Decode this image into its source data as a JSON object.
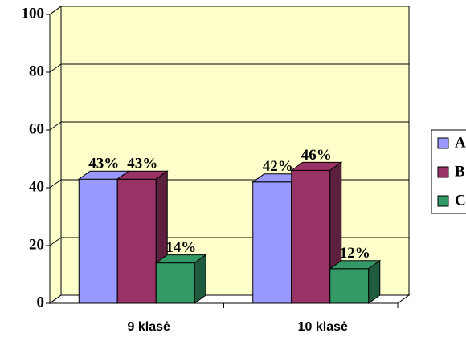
{
  "chart_data": {
    "type": "bar3d",
    "categories": [
      "9 klasė",
      "10 klasė"
    ],
    "series": [
      {
        "name": "A",
        "color": "#9999ff",
        "side": "#6b6bb3",
        "values": [
          43,
          42
        ],
        "value_labels": [
          "43%",
          "42%"
        ]
      },
      {
        "name": "B",
        "color": "#993366",
        "side": "#5c1f3d",
        "values": [
          43,
          46
        ],
        "value_labels": [
          "43%",
          "46%"
        ]
      },
      {
        "name": "C",
        "color": "#339966",
        "side": "#1f5c3d",
        "values": [
          14,
          12
        ],
        "value_labels": [
          "14%",
          "12%"
        ]
      }
    ],
    "ylim": [
      0,
      100
    ],
    "yticks": [
      0,
      20,
      40,
      60,
      80,
      100
    ],
    "grid": true,
    "wall_color": "#ffffcc",
    "legend": "right"
  }
}
